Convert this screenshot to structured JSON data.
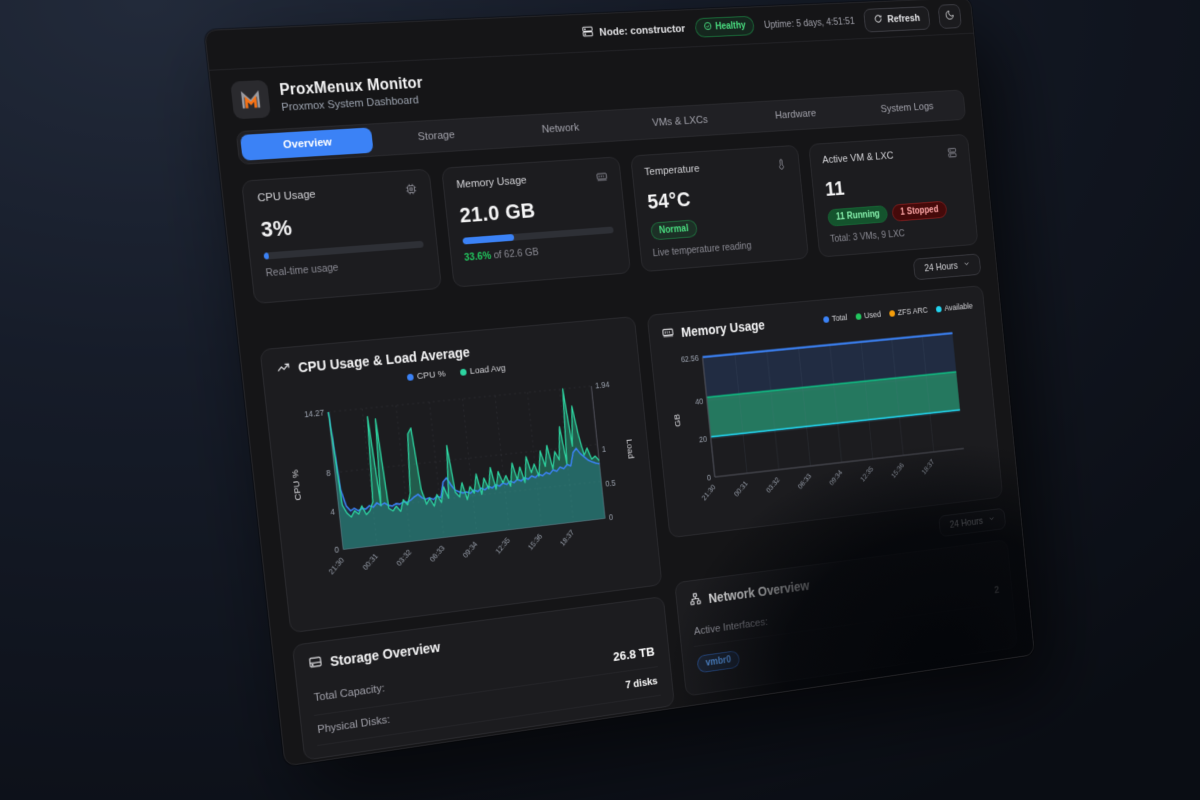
{
  "topbar": {
    "node_label": "Node: constructor",
    "health_label": "Healthy",
    "uptime": "Uptime: 5 days, 4:51:51",
    "refresh_label": "Refresh"
  },
  "header": {
    "title": "ProxMenux Monitor",
    "subtitle": "Proxmox System Dashboard"
  },
  "tabs": [
    {
      "label": "Overview",
      "active": true
    },
    {
      "label": "Storage",
      "active": false
    },
    {
      "label": "Network",
      "active": false
    },
    {
      "label": "VMs & LXCs",
      "active": false
    },
    {
      "label": "Hardware",
      "active": false
    },
    {
      "label": "System Logs",
      "active": false
    }
  ],
  "stats": {
    "cpu": {
      "label": "CPU Usage",
      "value": "3%",
      "percent": 3,
      "caption": "Real-time usage"
    },
    "memory": {
      "label": "Memory Usage",
      "value": "21.0 GB",
      "percent": 33.6,
      "caption_highlight": "33.6%",
      "caption_rest": " of 62.6 GB"
    },
    "temperature": {
      "label": "Temperature",
      "value": "54°C",
      "badge": "Normal",
      "caption": "Live temperature reading"
    },
    "vms": {
      "label": "Active VM & LXC",
      "value": "11",
      "running_badge": "11 Running",
      "stopped_badge": "1 Stopped",
      "caption": "Total: 3 VMs, 9 LXC"
    }
  },
  "range_selector": {
    "label": "24 Hours"
  },
  "range_selector2": {
    "label": "24 Hours"
  },
  "colors": {
    "accent": "#3b82f6",
    "green": "#2dd4a0",
    "used_green": "#10b981",
    "orange": "#f59e0b",
    "cyan": "#22d3ee",
    "healthy": "#4ade80",
    "logo_orange": "#f97316"
  },
  "icons": {
    "node-icon": "server",
    "healthy-icon": "check-circle",
    "refresh-icon": "circular-arrow",
    "theme-icon": "moon",
    "cpu-icon": "chip",
    "memory-icon": "ram-stick",
    "temperature-icon": "thermometer",
    "vm-icon": "server-stack",
    "trend-icon": "trending-up",
    "storage-icon": "hard-drive",
    "network-icon": "network-nodes",
    "chevron-icon": "chevron-down"
  },
  "storage": {
    "title": "Storage Overview",
    "rows": [
      {
        "label": "Total Capacity:",
        "value": "26.8 TB"
      },
      {
        "label": "Physical Disks:",
        "value": "7 disks"
      }
    ]
  },
  "network": {
    "title": "Network Overview",
    "rows": [
      {
        "label": "Active Interfaces:",
        "value": "2"
      }
    ],
    "badge": "vmbr0"
  },
  "chart_data": [
    {
      "type": "line",
      "title": "CPU Usage & Load Average",
      "legend": [
        {
          "name": "CPU %",
          "color": "#3b82f6"
        },
        {
          "name": "Load Avg",
          "color": "#2dd4a0"
        }
      ],
      "x_ticks": [
        "21:30",
        "00:31",
        "03:32",
        "06:33",
        "09:34",
        "12:35",
        "15:36",
        "18:37"
      ],
      "left_axis": {
        "label": "CPU %",
        "max": 14.27,
        "ticks": [
          0,
          4,
          8,
          14.27
        ],
        "tick_labels": [
          "0",
          "4",
          "8",
          "14.27"
        ]
      },
      "right_axis": {
        "label": "Load",
        "max": 1.94,
        "ticks": [
          0,
          0.5,
          1,
          1.94
        ],
        "tick_labels": [
          "0",
          "0.5",
          "1",
          "1.94"
        ]
      },
      "series": [
        {
          "name": "CPU %",
          "axis": "left",
          "color": "#3b82f6",
          "fill": "rgba(59,130,246,0.18)",
          "values": [
            14.27,
            6.2,
            4.4,
            3.9,
            4.1,
            3.8,
            4.0,
            3.9,
            4.2,
            4.0,
            4.4,
            4.1,
            4.3,
            4.0,
            3.9,
            4.1,
            4.0,
            4.2,
            4.1,
            4.3,
            4.6,
            4.8,
            4.4,
            4.2,
            4.3,
            4.1,
            4.4,
            4.2,
            5.8,
            6.2,
            5.4,
            4.8,
            4.6,
            4.4,
            4.5,
            4.3,
            4.6,
            4.4,
            4.7,
            4.5,
            4.8,
            4.6,
            4.9,
            4.7,
            5.0,
            4.8,
            5.1,
            4.9,
            5.2,
            5.0,
            5.3,
            5.1,
            5.4,
            5.2,
            5.5,
            5.3,
            5.6,
            5.4,
            5.8,
            5.6,
            6.0,
            5.8,
            6.2,
            6.0,
            7.4,
            7.8,
            7.2,
            6.8,
            6.4,
            6.2,
            6.0,
            5.9
          ]
        },
        {
          "name": "Load Avg",
          "axis": "right",
          "color": "#2dd4a0",
          "fill": "rgba(45,212,160,0.35)",
          "values": [
            1.94,
            0.62,
            0.5,
            0.44,
            0.52,
            0.47,
            0.58,
            0.45,
            0.5,
            0.62,
            1.82,
            0.55,
            1.78,
            0.5,
            0.46,
            0.52,
            0.44,
            0.6,
            0.52,
            0.68,
            1.52,
            1.6,
            0.72,
            0.5,
            0.58,
            0.46,
            0.62,
            0.5,
            0.72,
            0.55,
            1.3,
            0.62,
            0.55,
            0.75,
            0.5,
            0.68,
            0.58,
            0.85,
            0.55,
            0.78,
            0.62,
            0.92,
            0.6,
            0.85,
            0.68,
            0.78,
            0.62,
            0.95,
            0.7,
            0.88,
            0.65,
            1.02,
            0.78,
            0.9,
            0.72,
            1.08,
            0.85,
            1.15,
            0.8,
            1.05,
            0.92,
            1.4,
            0.85,
            1.94,
            1.1,
            1.68,
            1.25,
            0.95,
            1.05,
            0.88,
            0.92,
            0.85
          ]
        }
      ]
    },
    {
      "type": "area",
      "title": "Memory Usage",
      "legend": [
        {
          "name": "Total",
          "color": "#3b82f6"
        },
        {
          "name": "Used",
          "color": "#22c55e"
        },
        {
          "name": "ZFS ARC",
          "color": "#f59e0b"
        },
        {
          "name": "Available",
          "color": "#22d3ee"
        }
      ],
      "x_ticks": [
        "21:30",
        "00:31",
        "03:32",
        "06:33",
        "09:34",
        "12:35",
        "15:36",
        "18:37"
      ],
      "y_axis": {
        "label": "GB",
        "max": 62.56,
        "ticks": [
          0,
          20,
          40,
          62.56
        ],
        "tick_labels": [
          "0",
          "20",
          "40",
          "62.56"
        ]
      },
      "series": [
        {
          "name": "Total",
          "color": "#3b82f6",
          "values": [
            62.56,
            62.56,
            62.56,
            62.56,
            62.56,
            62.56,
            62.56,
            62.56
          ]
        },
        {
          "name": "Used",
          "color": "#22c55e",
          "values": [
            21.0,
            21.0,
            21.0,
            21.0,
            21.0,
            21.0,
            21.0,
            21.0
          ]
        },
        {
          "name": "ZFS ARC",
          "color": "#f59e0b",
          "values": [
            0.9,
            0.9,
            0.9,
            0.9,
            0.9,
            0.9,
            0.9,
            0.9
          ]
        },
        {
          "name": "Available",
          "color": "#22d3ee",
          "values": [
            40.7,
            40.7,
            40.7,
            40.7,
            40.7,
            40.7,
            40.7,
            40.7
          ]
        }
      ]
    }
  ]
}
